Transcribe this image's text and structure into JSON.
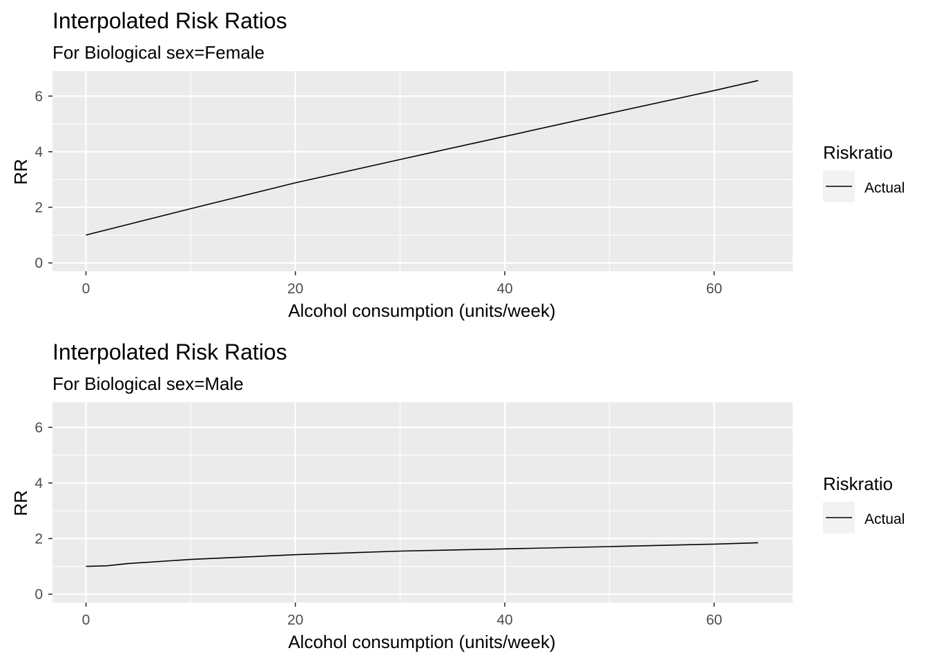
{
  "chart_data": [
    {
      "type": "line",
      "title": "Interpolated Risk Ratios",
      "subtitle": "For  Biological sex=Female",
      "xlabel": "Alcohol consumption (units/week)",
      "ylabel": "RR",
      "xlim": [
        -3.2,
        67.5
      ],
      "ylim": [
        -0.3,
        6.9
      ],
      "x_ticks": [
        0,
        20,
        40,
        60
      ],
      "y_ticks": [
        0,
        2,
        4,
        6
      ],
      "grid": true,
      "legend": {
        "title": "Riskratio",
        "position": "right",
        "entries": [
          "Actual"
        ]
      },
      "series": [
        {
          "name": "Actual",
          "color": "#000000",
          "x": [
            0,
            10,
            20,
            30,
            40,
            50,
            60,
            64.2
          ],
          "y": [
            1.0,
            1.95,
            2.88,
            3.72,
            4.55,
            5.38,
            6.2,
            6.56
          ]
        }
      ]
    },
    {
      "type": "line",
      "title": "Interpolated Risk Ratios",
      "subtitle": "For  Biological sex=Male",
      "xlabel": "Alcohol consumption (units/week)",
      "ylabel": "RR",
      "xlim": [
        -3.2,
        67.5
      ],
      "ylim": [
        -0.3,
        6.9
      ],
      "x_ticks": [
        0,
        20,
        40,
        60
      ],
      "y_ticks": [
        0,
        2,
        4,
        6
      ],
      "grid": true,
      "legend": {
        "title": "Riskratio",
        "position": "right",
        "entries": [
          "Actual"
        ]
      },
      "series": [
        {
          "name": "Actual",
          "color": "#000000",
          "x": [
            0,
            2,
            4,
            10,
            20,
            30,
            40,
            50,
            60,
            64.2
          ],
          "y": [
            1.0,
            1.02,
            1.1,
            1.25,
            1.42,
            1.55,
            1.63,
            1.71,
            1.8,
            1.85
          ]
        }
      ]
    }
  ]
}
